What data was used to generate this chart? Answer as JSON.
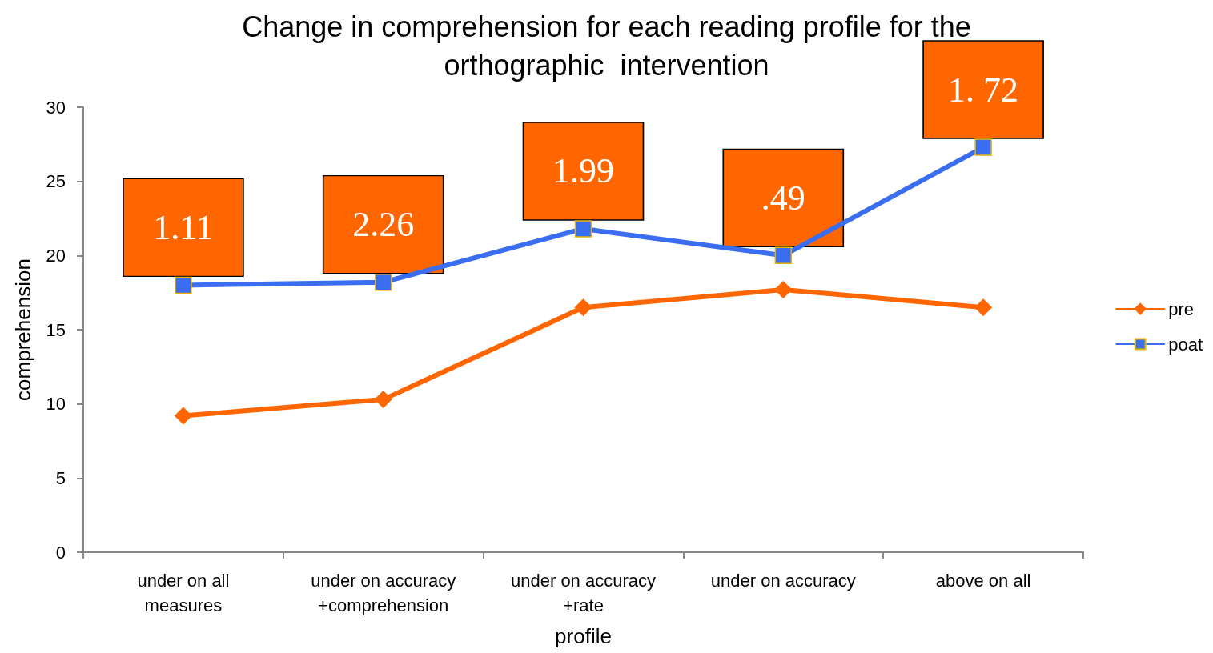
{
  "chart_data": {
    "type": "line",
    "title": "Change in comprehension for each reading profile for the\northographic  intervention",
    "xlabel": "profile",
    "ylabel": "comprehension",
    "categories": [
      "under on all\nmeasures",
      "under on accuracy\n+comprehension",
      "under on accuracy\n+rate",
      "under on accuracy",
      "above on all"
    ],
    "series": [
      {
        "name": "pre",
        "color": "#ff6600",
        "marker": "diamond",
        "values": [
          9.2,
          10.3,
          16.5,
          17.7,
          16.5
        ]
      },
      {
        "name": "poat",
        "color": "#3a6df0",
        "marker": "square",
        "values": [
          18.0,
          18.2,
          21.8,
          20.0,
          27.3
        ]
      }
    ],
    "annotations": [
      "1.11",
      "2.26",
      "1.99",
      ".49",
      "1. 72"
    ],
    "ylim": [
      0,
      30
    ],
    "yticks": [
      0,
      5,
      10,
      15,
      20,
      25,
      30
    ],
    "grid": false,
    "legend": "right"
  }
}
